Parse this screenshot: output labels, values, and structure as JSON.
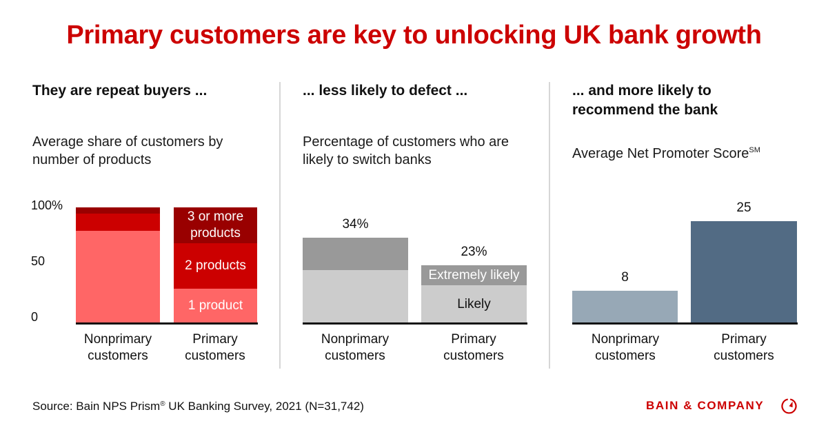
{
  "title": "Primary customers are key to unlocking UK bank growth",
  "brand": {
    "name": "BAIN & COMPANY",
    "icon": "bain-radar-logo-icon",
    "color": "#cc0000"
  },
  "source": {
    "text_before": "Source: Bain NPS Prism",
    "registered": "®",
    "text_after": " UK Banking Survey, 2021 (N=31,742)"
  },
  "panels": [
    {
      "heading": "They are repeat buyers ...",
      "subtitle": "Average share of customers by number of products",
      "y_ticks": [
        "100%",
        "50",
        "0"
      ]
    },
    {
      "heading": "... less likely to defect ...",
      "subtitle": "Percentage of customers who are likely to switch banks"
    },
    {
      "heading_line1": "... and more likely to",
      "heading_line2": "recommend the bank",
      "subtitle": "Average Net Promoter Score",
      "subtitle_sup": "SM"
    }
  ],
  "x_labels": {
    "nonprimary_line1": "Nonprimary",
    "nonprimary_line2": "customers",
    "primary_line1": "Primary",
    "primary_line2": "customers"
  },
  "colors": {
    "title_red": "#cc0000",
    "one_product": "#ff6666",
    "two_products": "#cc0000",
    "three_plus_products": "#990000",
    "likely": "#cccccc",
    "extremely_likely": "#999999",
    "nps_nonprimary": "#97a8b6",
    "nps_primary": "#526b84",
    "separator": "#d6d6d6",
    "axis": "#111111"
  },
  "chart_data": [
    {
      "type": "bar",
      "stacked": true,
      "title": "They are repeat buyers ...",
      "subtitle": "Average share of customers by number of products",
      "categories": [
        "Nonprimary customers",
        "Primary customers"
      ],
      "series": [
        {
          "name": "1 product",
          "values": [
            80,
            30
          ],
          "color": "#ff6666"
        },
        {
          "name": "2 products",
          "values": [
            15,
            39
          ],
          "color": "#cc0000"
        },
        {
          "name": "3 or more products",
          "values": [
            5,
            31
          ],
          "color": "#990000"
        }
      ],
      "segment_labels": {
        "one": "1 product",
        "two": "2 products",
        "three_line1": "3 or more",
        "three_line2": "products"
      },
      "ylabel": "",
      "y_ticks": [
        "0",
        "50",
        "100%"
      ],
      "ylim": [
        0,
        100
      ],
      "grid": false
    },
    {
      "type": "bar",
      "stacked": true,
      "title": "... less likely to defect ...",
      "subtitle": "Percentage of customers who are likely to switch banks",
      "categories": [
        "Nonprimary customers",
        "Primary customers"
      ],
      "series": [
        {
          "name": "Likely",
          "values": [
            21,
            15
          ],
          "color": "#cccccc"
        },
        {
          "name": "Extremely likely",
          "values": [
            13,
            8
          ],
          "color": "#999999"
        }
      ],
      "totals": [
        34,
        23
      ],
      "total_labels": [
        "34%",
        "23%"
      ],
      "segment_labels": {
        "likely": "Likely",
        "extremely": "Extremely likely"
      },
      "ylim": [
        0,
        34
      ],
      "grid": false
    },
    {
      "type": "bar",
      "stacked": false,
      "title": "... and more likely to recommend the bank",
      "subtitle": "Average Net Promoter Score℠",
      "categories": [
        "Nonprimary customers",
        "Primary customers"
      ],
      "values": [
        8,
        25
      ],
      "value_labels": [
        "8",
        "25"
      ],
      "colors": [
        "#97a8b6",
        "#526b84"
      ],
      "ylim": [
        0,
        25
      ],
      "grid": false
    }
  ]
}
